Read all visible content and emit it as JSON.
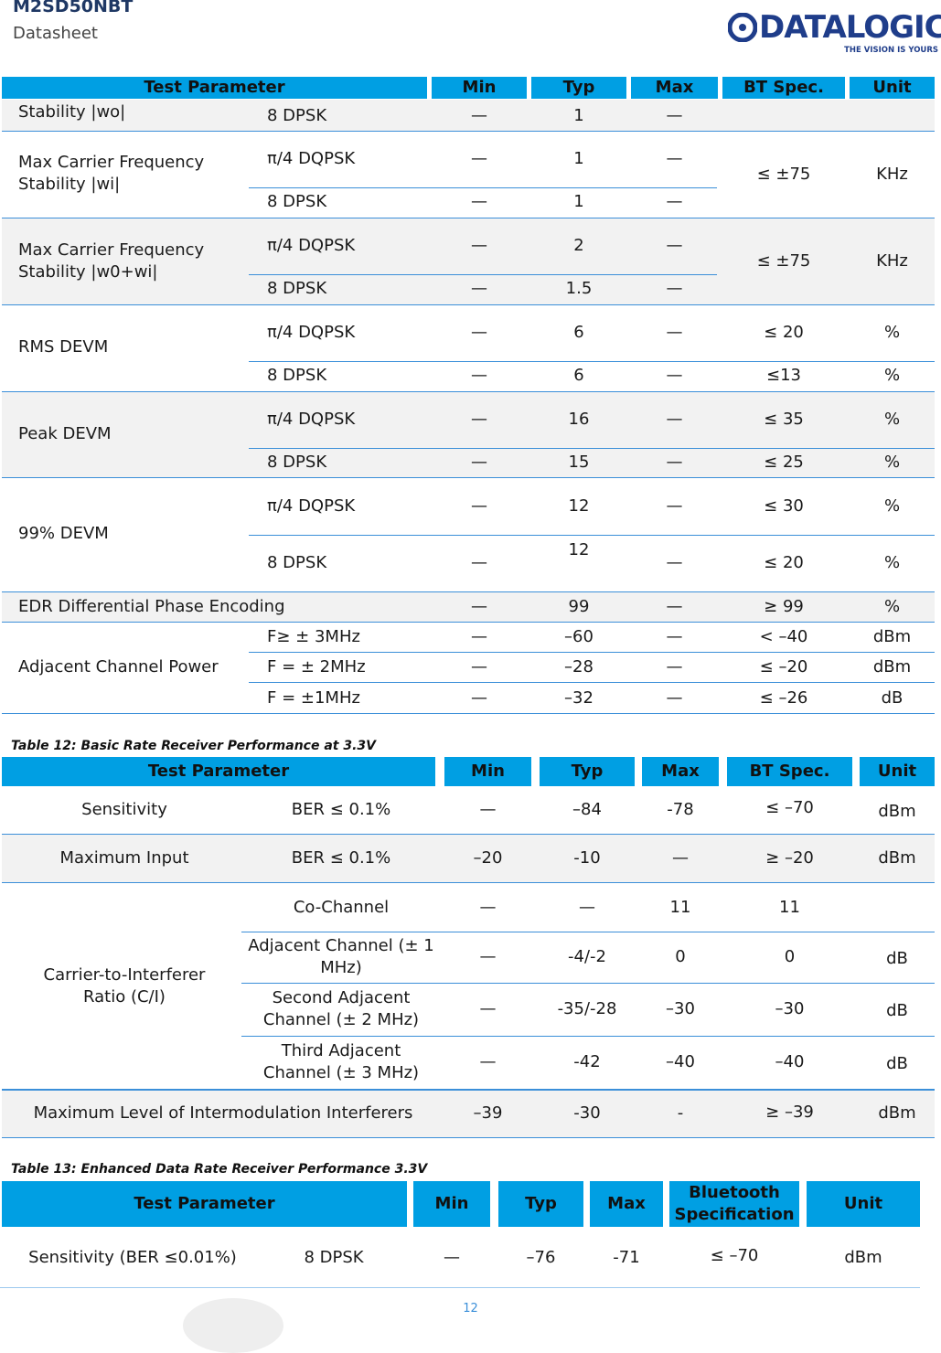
{
  "header": {
    "title": "M2SD50NBT",
    "subtitle": "Datasheet"
  },
  "logo": {
    "word": "DATALOGIC",
    "tagline": "THE VISION IS YOURS"
  },
  "table1": {
    "headers": [
      "Test Parameter",
      "Min",
      "Typ",
      "Max",
      "BT Spec.",
      "Unit"
    ],
    "r0": {
      "param": "Stability |wo|",
      "mod": "8 DPSK",
      "min": "—",
      "typ": "1",
      "max": "—"
    },
    "g1": {
      "param": "Max Carrier Frequency Stability |wi|",
      "spec": "≤ ±75",
      "unit": "KHz",
      "a": {
        "mod": "π/4 DQPSK",
        "min": "—",
        "typ": "1",
        "max": "—"
      },
      "b": {
        "mod": "8 DPSK",
        "min": "—",
        "typ": "1",
        "max": "—"
      }
    },
    "g2": {
      "param": "Max Carrier Frequency Stability |w0+wi|",
      "spec": "≤ ±75",
      "unit": "KHz",
      "a": {
        "mod": "π/4 DQPSK",
        "min": "—",
        "typ": "2",
        "max": "—"
      },
      "b": {
        "mod": "8 DPSK",
        "min": "—",
        "typ": "1.5",
        "max": "—"
      }
    },
    "g3": {
      "param": "RMS DEVM",
      "a": {
        "mod": "π/4 DQPSK",
        "min": "—",
        "typ": "6",
        "max": "—",
        "spec": "≤ 20",
        "unit": "%"
      },
      "b": {
        "mod": "8 DPSK",
        "min": "—",
        "typ": "6",
        "max": "—",
        "spec": "≤13",
        "unit": "%"
      }
    },
    "g4": {
      "param": "Peak DEVM",
      "a": {
        "mod": "π/4 DQPSK",
        "min": "—",
        "typ": "16",
        "max": "—",
        "spec": "≤ 35",
        "unit": "%"
      },
      "b": {
        "mod": "8 DPSK",
        "min": "—",
        "typ": "15",
        "max": "—",
        "spec": "≤ 25",
        "unit": "%"
      }
    },
    "g5": {
      "param": "99% DEVM",
      "a": {
        "mod": "π/4 DQPSK",
        "min": "—",
        "typ": "12",
        "max": "—",
        "spec": "≤ 30",
        "unit": "%"
      },
      "b": {
        "mod": "8 DPSK",
        "min": "—",
        "typ": "12",
        "max": "—",
        "spec": "≤ 20",
        "unit": "%"
      }
    },
    "r6": {
      "param": "EDR Differential Phase Encoding",
      "min": "—",
      "typ": "99",
      "max": "—",
      "spec": "≥ 99",
      "unit": "%"
    },
    "g7": {
      "param": "Adjacent Channel Power",
      "a": {
        "mod": "F≥ ± 3MHz",
        "min": "—",
        "typ": "–60",
        "max": "—",
        "spec": "< –40",
        "unit": "dBm"
      },
      "b": {
        "mod": "F = ± 2MHz",
        "min": "—",
        "typ": "–28",
        "max": "—",
        "spec": "≤ –20",
        "unit": "dBm"
      },
      "c": {
        "mod": "F = ±1MHz",
        "min": "—",
        "typ": "–32",
        "max": "—",
        "spec": "≤ –26",
        "unit": "dB"
      }
    }
  },
  "table2": {
    "caption": "Table 12: Basic Rate Receiver Performance at 3.3V",
    "headers": [
      "Test Parameter",
      "Min",
      "Typ",
      "Max",
      "BT Spec.",
      "Unit"
    ],
    "r1": {
      "param": "Sensitivity",
      "cond": "BER ≤ 0.1%",
      "min": "—",
      "typ": "–84",
      "max": "-78",
      "spec": "≤ –70",
      "unit": "dBm"
    },
    "r2": {
      "param": "Maximum Input",
      "cond": "BER ≤ 0.1%",
      "min": "–20",
      "typ": "-10",
      "max": "—",
      "spec": "≥ –20",
      "unit": "dBm"
    },
    "g3": {
      "param": "Carrier-to-Interferer Ratio (C/I)",
      "a": {
        "cond": "Co-Channel",
        "min": "—",
        "typ": "—",
        "max": "11",
        "spec": "11",
        "unit": ""
      },
      "b": {
        "cond": "Adjacent Channel (± 1 MHz)",
        "min": "—",
        "typ": "-4/-2",
        "max": "0",
        "spec": "0",
        "unit": "dB"
      },
      "c": {
        "cond": "Second Adjacent Channel (± 2 MHz)",
        "min": "—",
        "typ": "-35/-28",
        "max": "–30",
        "spec": "–30",
        "unit": "dB"
      },
      "d": {
        "cond": "Third Adjacent Channel (± 3 MHz)",
        "min": "—",
        "typ": "-42",
        "max": "–40",
        "spec": "–40",
        "unit": "dB"
      }
    },
    "r4": {
      "param": "Maximum Level of Intermodulation Interferers",
      "min": "–39",
      "typ": "-30",
      "max": "-",
      "spec": "≥ –39",
      "unit": "dBm"
    }
  },
  "table3": {
    "caption": "Table 13: Enhanced Data Rate Receiver Performance 3.3V",
    "headers": [
      "Test Parameter",
      "Min",
      "Typ",
      "Max",
      "Bluetooth Specification",
      "Unit"
    ],
    "r1": {
      "param": "Sensitivity (BER ≤0.01%)",
      "mod": "8 DPSK",
      "min": "—",
      "typ": "–76",
      "max": "-71",
      "spec": "≤ –70",
      "unit": "dBm"
    }
  },
  "footer": {
    "page_number": "12"
  },
  "colors": {
    "header_fill": "#009fe3",
    "rule": "#3b8fd9",
    "title": "#1f3864",
    "logo": "#1f3d8a"
  }
}
